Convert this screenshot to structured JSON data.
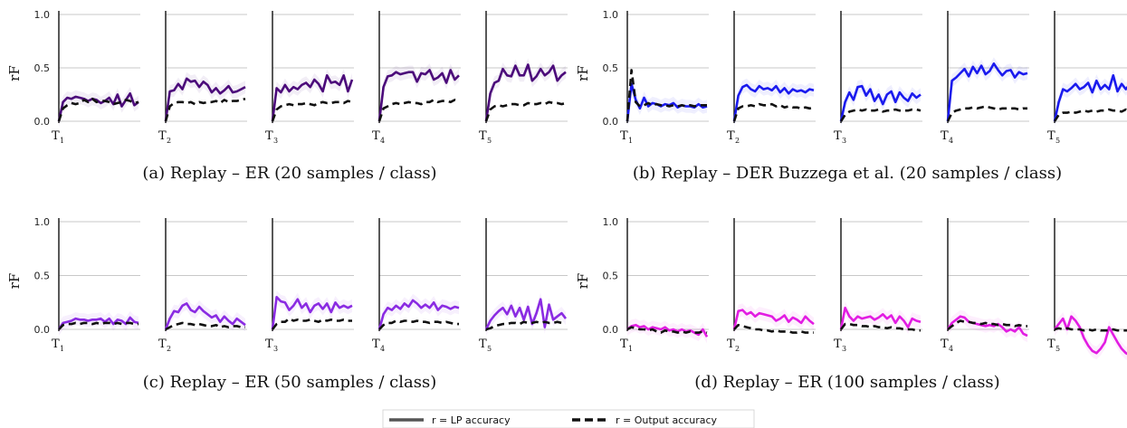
{
  "legend": {
    "lp_label": "r = LP accuracy",
    "out_label": "r = Output accuracy"
  },
  "chart_data": [
    {
      "type": "line",
      "caption": "(a) Replay – ER (20 samples / class)",
      "ylabel": "rF",
      "yticks": [
        "0.0",
        "0.5",
        "1.0"
      ],
      "ylim": [
        0,
        1.05
      ],
      "task_labels": [
        "1",
        "2",
        "3",
        "4",
        "5"
      ],
      "color": "#4b0a7a",
      "series": [
        {
          "series_role": "lp",
          "values": [
            [
              0.0,
              0.18,
              0.22,
              0.21,
              0.23,
              0.22,
              0.21,
              0.19,
              0.21,
              0.2,
              0.17,
              0.19,
              0.22,
              0.16,
              0.25,
              0.14,
              0.2,
              0.26,
              0.15,
              0.18
            ],
            [
              0.0,
              0.28,
              0.29,
              0.35,
              0.3,
              0.4,
              0.37,
              0.38,
              0.32,
              0.37,
              0.34,
              0.27,
              0.31,
              0.26,
              0.29,
              0.33,
              0.27,
              0.28,
              0.3,
              0.32
            ],
            [
              0.0,
              0.31,
              0.27,
              0.34,
              0.28,
              0.32,
              0.3,
              0.34,
              0.36,
              0.32,
              0.39,
              0.35,
              0.28,
              0.43,
              0.36,
              0.37,
              0.34,
              0.43,
              0.28,
              0.39
            ],
            [
              0.0,
              0.32,
              0.42,
              0.43,
              0.46,
              0.44,
              0.45,
              0.46,
              0.46,
              0.37,
              0.45,
              0.44,
              0.48,
              0.39,
              0.41,
              0.45,
              0.36,
              0.48,
              0.39,
              0.43
            ],
            [
              0.0,
              0.26,
              0.36,
              0.38,
              0.49,
              0.43,
              0.42,
              0.52,
              0.43,
              0.43,
              0.53,
              0.38,
              0.42,
              0.49,
              0.43,
              0.46,
              0.52,
              0.38,
              0.43,
              0.46
            ]
          ]
        },
        {
          "series_role": "out",
          "values": [
            [
              0.0,
              0.12,
              0.15,
              0.17,
              0.16,
              0.17,
              0.2,
              0.18,
              0.21,
              0.18,
              0.19,
              0.19,
              0.18,
              0.16,
              0.17,
              0.18,
              0.2,
              0.19,
              0.17,
              0.18
            ],
            [
              0.0,
              0.14,
              0.17,
              0.18,
              0.18,
              0.17,
              0.18,
              0.16,
              0.18,
              0.17,
              0.18,
              0.18,
              0.19,
              0.17,
              0.2,
              0.18,
              0.19,
              0.19,
              0.2,
              0.21
            ],
            [
              0.0,
              0.11,
              0.14,
              0.15,
              0.16,
              0.15,
              0.16,
              0.16,
              0.17,
              0.16,
              0.15,
              0.17,
              0.18,
              0.17,
              0.17,
              0.18,
              0.18,
              0.17,
              0.19,
              0.18
            ],
            [
              0.0,
              0.12,
              0.14,
              0.16,
              0.17,
              0.16,
              0.17,
              0.18,
              0.17,
              0.17,
              0.16,
              0.18,
              0.18,
              0.2,
              0.18,
              0.19,
              0.19,
              0.18,
              0.2,
              0.19
            ],
            [
              0.0,
              0.11,
              0.14,
              0.15,
              0.14,
              0.15,
              0.16,
              0.16,
              0.15,
              0.15,
              0.17,
              0.16,
              0.16,
              0.17,
              0.16,
              0.18,
              0.17,
              0.17,
              0.16,
              0.17
            ]
          ]
        }
      ]
    },
    {
      "type": "line",
      "caption": "(b) Replay – DER Buzzega et al. (20 samples / class)",
      "ylabel": "rF",
      "yticks": [
        "0.0",
        "0.5",
        "1.0"
      ],
      "ylim": [
        0,
        1.05
      ],
      "task_labels": [
        "1",
        "2",
        "3",
        "4",
        "5"
      ],
      "color": "#1a1aee",
      "series": [
        {
          "series_role": "lp",
          "values": [
            [
              0.0,
              0.35,
              0.2,
              0.12,
              0.22,
              0.14,
              0.17,
              0.16,
              0.14,
              0.16,
              0.15,
              0.17,
              0.13,
              0.15,
              0.14,
              0.14,
              0.13,
              0.16,
              0.13,
              0.14
            ],
            [
              0.0,
              0.24,
              0.32,
              0.34,
              0.3,
              0.28,
              0.33,
              0.3,
              0.31,
              0.29,
              0.33,
              0.27,
              0.31,
              0.26,
              0.3,
              0.28,
              0.29,
              0.27,
              0.3,
              0.29
            ],
            [
              0.0,
              0.18,
              0.27,
              0.2,
              0.32,
              0.33,
              0.24,
              0.3,
              0.19,
              0.25,
              0.16,
              0.25,
              0.28,
              0.18,
              0.27,
              0.22,
              0.19,
              0.26,
              0.22,
              0.25
            ],
            [
              0.0,
              0.38,
              0.41,
              0.45,
              0.49,
              0.42,
              0.51,
              0.45,
              0.52,
              0.44,
              0.47,
              0.54,
              0.48,
              0.43,
              0.47,
              0.48,
              0.41,
              0.46,
              0.44,
              0.45
            ],
            [
              0.0,
              0.18,
              0.3,
              0.28,
              0.31,
              0.35,
              0.3,
              0.32,
              0.36,
              0.27,
              0.38,
              0.3,
              0.34,
              0.3,
              0.43,
              0.28,
              0.35,
              0.3,
              0.35,
              0.32
            ]
          ]
        },
        {
          "series_role": "out",
          "values": [
            [
              0.0,
              0.48,
              0.18,
              0.14,
              0.15,
              0.17,
              0.15,
              0.16,
              0.15,
              0.15,
              0.14,
              0.15,
              0.14,
              0.15,
              0.14,
              0.15,
              0.14,
              0.15,
              0.15,
              0.15
            ],
            [
              0.0,
              0.12,
              0.14,
              0.14,
              0.15,
              0.14,
              0.16,
              0.15,
              0.15,
              0.16,
              0.14,
              0.15,
              0.13,
              0.14,
              0.13,
              0.13,
              0.12,
              0.13,
              0.12,
              0.13
            ],
            [
              0.0,
              0.06,
              0.09,
              0.1,
              0.11,
              0.1,
              0.11,
              0.1,
              0.1,
              0.11,
              0.09,
              0.1,
              0.1,
              0.11,
              0.1,
              0.1,
              0.1,
              0.11,
              0.11,
              0.1
            ],
            [
              0.0,
              0.08,
              0.1,
              0.11,
              0.12,
              0.12,
              0.13,
              0.12,
              0.13,
              0.14,
              0.13,
              0.12,
              0.11,
              0.12,
              0.12,
              0.12,
              0.12,
              0.11,
              0.12,
              0.12
            ],
            [
              0.0,
              0.06,
              0.08,
              0.08,
              0.09,
              0.08,
              0.09,
              0.1,
              0.09,
              0.1,
              0.09,
              0.1,
              0.1,
              0.11,
              0.1,
              0.1,
              0.09,
              0.11,
              0.09,
              0.1
            ]
          ]
        }
      ]
    },
    {
      "type": "line",
      "caption": "(c) Replay – ER (50 samples / class)",
      "ylabel": "rF",
      "yticks": [
        "0.0",
        "0.5",
        "1.0"
      ],
      "ylim": [
        0,
        1.05
      ],
      "task_labels": [
        "1",
        "2",
        "3",
        "4",
        "5"
      ],
      "color": "#8a2be2",
      "series": [
        {
          "series_role": "lp",
          "values": [
            [
              0.0,
              0.06,
              0.07,
              0.08,
              0.1,
              0.09,
              0.09,
              0.08,
              0.09,
              0.09,
              0.1,
              0.07,
              0.1,
              0.05,
              0.09,
              0.08,
              0.05,
              0.11,
              0.07,
              0.06
            ],
            [
              0.0,
              0.1,
              0.17,
              0.16,
              0.22,
              0.24,
              0.18,
              0.16,
              0.21,
              0.17,
              0.14,
              0.11,
              0.13,
              0.07,
              0.12,
              0.08,
              0.05,
              0.1,
              0.07,
              0.04
            ],
            [
              0.0,
              0.3,
              0.26,
              0.25,
              0.18,
              0.22,
              0.28,
              0.2,
              0.24,
              0.16,
              0.22,
              0.24,
              0.19,
              0.24,
              0.16,
              0.25,
              0.2,
              0.22,
              0.2,
              0.22
            ],
            [
              0.0,
              0.14,
              0.2,
              0.18,
              0.22,
              0.19,
              0.24,
              0.21,
              0.27,
              0.24,
              0.2,
              0.23,
              0.2,
              0.25,
              0.18,
              0.22,
              0.21,
              0.19,
              0.21,
              0.2
            ],
            [
              0.0,
              0.08,
              0.13,
              0.17,
              0.2,
              0.14,
              0.22,
              0.12,
              0.2,
              0.09,
              0.21,
              0.05,
              0.15,
              0.28,
              0.02,
              0.23,
              0.09,
              0.12,
              0.15,
              0.1
            ]
          ]
        },
        {
          "series_role": "out",
          "values": [
            [
              0.0,
              0.04,
              0.05,
              0.05,
              0.06,
              0.05,
              0.06,
              0.06,
              0.05,
              0.06,
              0.05,
              0.06,
              0.06,
              0.05,
              0.06,
              0.05,
              0.06,
              0.06,
              0.05,
              0.05
            ],
            [
              0.0,
              0.02,
              0.04,
              0.05,
              0.06,
              0.05,
              0.05,
              0.04,
              0.05,
              0.04,
              0.03,
              0.03,
              0.04,
              0.02,
              0.03,
              0.02,
              0.03,
              0.03,
              0.02,
              0.02
            ],
            [
              0.0,
              0.05,
              0.07,
              0.07,
              0.1,
              0.08,
              0.09,
              0.08,
              0.08,
              0.09,
              0.08,
              0.07,
              0.09,
              0.08,
              0.09,
              0.08,
              0.08,
              0.09,
              0.08,
              0.08
            ],
            [
              0.0,
              0.04,
              0.06,
              0.06,
              0.08,
              0.07,
              0.08,
              0.08,
              0.07,
              0.08,
              0.07,
              0.07,
              0.06,
              0.07,
              0.07,
              0.06,
              0.07,
              0.06,
              0.05,
              0.05
            ],
            [
              0.0,
              0.01,
              0.03,
              0.04,
              0.05,
              0.05,
              0.06,
              0.06,
              0.05,
              0.07,
              0.06,
              0.06,
              0.07,
              0.06,
              0.07,
              0.06,
              0.06,
              0.07,
              0.06,
              0.06
            ]
          ]
        }
      ]
    },
    {
      "type": "line",
      "caption": "(d) Replay – ER (100 samples / class)",
      "ylabel": "rF",
      "yticks": [
        "0.0",
        "0.5",
        "1.0"
      ],
      "ylim": [
        -0.25,
        1.05
      ],
      "task_labels": [
        "1",
        "2",
        "3",
        "4",
        "5"
      ],
      "color": "#e21ce2",
      "series": [
        {
          "series_role": "lp",
          "values": [
            [
              0.0,
              0.03,
              0.04,
              0.02,
              0.03,
              0.0,
              0.02,
              0.01,
              0.0,
              0.02,
              -0.01,
              0.0,
              -0.02,
              0.0,
              -0.02,
              -0.01,
              -0.03,
              -0.05,
              0.0,
              -0.07
            ],
            [
              0.0,
              0.17,
              0.18,
              0.14,
              0.16,
              0.12,
              0.15,
              0.14,
              0.13,
              0.12,
              0.08,
              0.1,
              0.13,
              0.07,
              0.11,
              0.09,
              0.06,
              0.12,
              0.08,
              0.05
            ],
            [
              0.0,
              0.2,
              0.12,
              0.08,
              0.12,
              0.1,
              0.11,
              0.12,
              0.09,
              0.11,
              0.14,
              0.1,
              0.13,
              0.06,
              0.12,
              0.08,
              0.02,
              0.1,
              0.08,
              0.07
            ],
            [
              0.0,
              0.06,
              0.09,
              0.12,
              0.11,
              0.07,
              0.06,
              0.05,
              0.04,
              0.03,
              0.04,
              0.03,
              0.05,
              0.02,
              -0.02,
              0.0,
              -0.02,
              0.02,
              -0.04,
              -0.06
            ],
            [
              0.0,
              0.05,
              0.1,
              0.0,
              0.12,
              0.08,
              0.02,
              -0.08,
              -0.15,
              -0.2,
              -0.22,
              -0.18,
              -0.12,
              0.02,
              -0.05,
              -0.12,
              -0.18,
              -0.22,
              -0.24,
              -0.25
            ]
          ]
        },
        {
          "series_role": "out",
          "values": [
            [
              0.0,
              0.02,
              0.01,
              0.0,
              0.0,
              -0.01,
              0.0,
              -0.02,
              -0.03,
              -0.01,
              -0.02,
              -0.02,
              -0.03,
              -0.02,
              -0.03,
              -0.02,
              -0.03,
              -0.03,
              -0.02,
              -0.03
            ],
            [
              0.0,
              0.04,
              0.03,
              0.02,
              0.01,
              0.0,
              0.0,
              -0.01,
              -0.01,
              -0.02,
              -0.01,
              -0.02,
              -0.02,
              -0.02,
              -0.03,
              -0.03,
              -0.02,
              -0.03,
              -0.03,
              -0.03
            ],
            [
              0.0,
              0.05,
              0.05,
              0.04,
              0.04,
              0.03,
              0.03,
              0.02,
              0.03,
              0.02,
              0.02,
              0.01,
              0.02,
              0.01,
              0.01,
              0.0,
              0.0,
              0.0,
              -0.01,
              -0.01
            ],
            [
              0.0,
              0.03,
              0.06,
              0.08,
              0.07,
              0.07,
              0.06,
              0.06,
              0.05,
              0.06,
              0.05,
              0.05,
              0.04,
              0.05,
              0.04,
              0.04,
              0.03,
              0.04,
              0.03,
              0.03
            ],
            [
              0.0,
              0.01,
              0.0,
              0.01,
              0.0,
              0.0,
              0.0,
              -0.01,
              0.0,
              -0.01,
              0.0,
              -0.01,
              -0.01,
              -0.01,
              0.0,
              -0.01,
              -0.01,
              -0.01,
              -0.01,
              -0.01
            ]
          ]
        }
      ]
    }
  ]
}
